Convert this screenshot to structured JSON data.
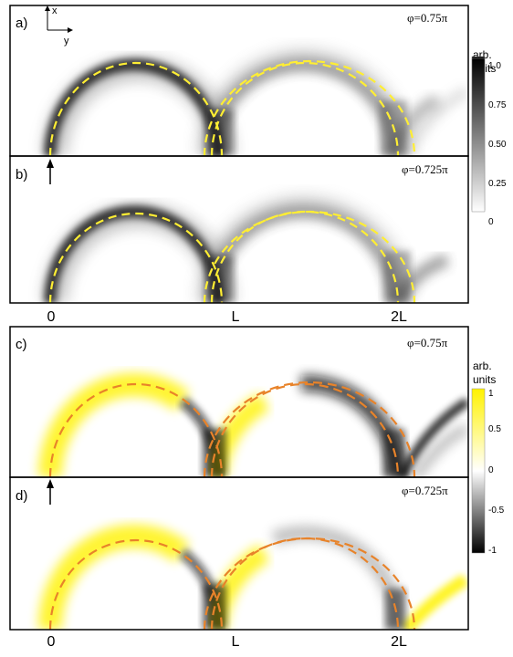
{
  "figure": {
    "axes": {
      "x_label": "x",
      "y_label": "y"
    },
    "x_ticks": [
      "0",
      "L",
      "2L"
    ]
  },
  "panels": [
    {
      "label": "a)",
      "phase": "φ=0.75π",
      "colormap": "grayscale"
    },
    {
      "label": "b)",
      "phase": "φ=0.725π",
      "colormap": "grayscale"
    },
    {
      "label": "c)",
      "phase": "φ=0.75π",
      "colormap": "yellow-black"
    },
    {
      "label": "d)",
      "phase": "φ=0.725π",
      "colormap": "yellow-black"
    }
  ],
  "colorbars": [
    {
      "title_line1": "arb.",
      "title_line2": "units",
      "ticks": [
        "1.0",
        "0.75",
        "0.50",
        "0.25",
        "0"
      ],
      "range": [
        0,
        1.0
      ]
    },
    {
      "title_line1": "arb.",
      "title_line2": "units",
      "ticks": [
        "1",
        "0.5",
        "0",
        "-0.5",
        "-1"
      ],
      "range": [
        -1,
        1
      ]
    }
  ],
  "colors": {
    "dashed_yellow": "#ffee33",
    "dashed_orange": "#e8832a",
    "positive": "#fff200",
    "negative": "#000000"
  },
  "chart_data": {
    "type": "heatmap",
    "panel_count": 4,
    "x_tick_labels": [
      "0",
      "L",
      "2L"
    ],
    "colorbar_top_range": [
      0,
      1.0
    ],
    "colorbar_bottom_range": [
      -1,
      1
    ]
  }
}
